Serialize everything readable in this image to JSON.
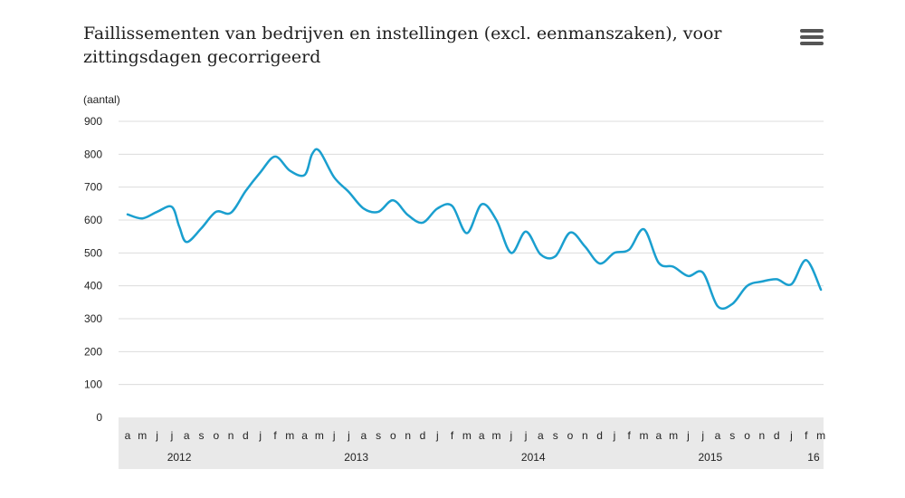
{
  "chart_data": {
    "type": "line",
    "title": "Faillissementen van bedrijven en instellingen (excl. eenmanszaken), voor zittingsdagen gecorrigeerd",
    "ylabel": "(aantal)",
    "xlabel": "",
    "ylim": [
      0,
      900
    ],
    "yticks": [
      0,
      100,
      200,
      300,
      400,
      500,
      600,
      700,
      800,
      900
    ],
    "grid": true,
    "legend": "none",
    "month_labels": [
      "a",
      "m",
      "j",
      "j",
      "a",
      "s",
      "o",
      "n",
      "d",
      "j",
      "f",
      "m",
      "a",
      "m",
      "j",
      "j",
      "a",
      "s",
      "o",
      "n",
      "d",
      "j",
      "f",
      "m",
      "a",
      "m",
      "j",
      "j",
      "a",
      "s",
      "o",
      "n",
      "d",
      "j",
      "f",
      "m",
      "a",
      "m",
      "j",
      "j",
      "a",
      "s",
      "o",
      "n",
      "d",
      "j",
      "f",
      "m"
    ],
    "year_labels": [
      {
        "label": "2012",
        "month_index": 3.5
      },
      {
        "label": "2013",
        "month_index": 15.5
      },
      {
        "label": "2014",
        "month_index": 27.5
      },
      {
        "label": "2015",
        "month_index": 39.5
      },
      {
        "label": "16",
        "month_index": 46.5
      }
    ],
    "series": [
      {
        "name": "Faillissementen",
        "color": "#1a9fcf",
        "values": [
          [
            0,
            617
          ],
          [
            1,
            605
          ],
          [
            2,
            625
          ],
          [
            3,
            640
          ],
          [
            3.5,
            580
          ],
          [
            4,
            533
          ],
          [
            5,
            575
          ],
          [
            6,
            625
          ],
          [
            7,
            622
          ],
          [
            8,
            688
          ],
          [
            9,
            745
          ],
          [
            10,
            793
          ],
          [
            11,
            750
          ],
          [
            12,
            737
          ],
          [
            12.5,
            800
          ],
          [
            13,
            810
          ],
          [
            14,
            730
          ],
          [
            15,
            685
          ],
          [
            16,
            635
          ],
          [
            17,
            625
          ],
          [
            18,
            660
          ],
          [
            19,
            615
          ],
          [
            20,
            592
          ],
          [
            21,
            635
          ],
          [
            22,
            643
          ],
          [
            23,
            560
          ],
          [
            24,
            648
          ],
          [
            25,
            600
          ],
          [
            26,
            500
          ],
          [
            27,
            565
          ],
          [
            28,
            495
          ],
          [
            29,
            490
          ],
          [
            30,
            562
          ],
          [
            31,
            520
          ],
          [
            32,
            468
          ],
          [
            33,
            500
          ],
          [
            34,
            510
          ],
          [
            35,
            572
          ],
          [
            36,
            470
          ],
          [
            37,
            458
          ],
          [
            38,
            430
          ],
          [
            39,
            440
          ],
          [
            40,
            338
          ],
          [
            41,
            345
          ],
          [
            42,
            400
          ],
          [
            43,
            413
          ],
          [
            44,
            420
          ],
          [
            45,
            405
          ],
          [
            46,
            478
          ],
          [
            47,
            388
          ]
        ]
      }
    ]
  },
  "menu": {
    "icon": "hamburger-menu-icon"
  }
}
